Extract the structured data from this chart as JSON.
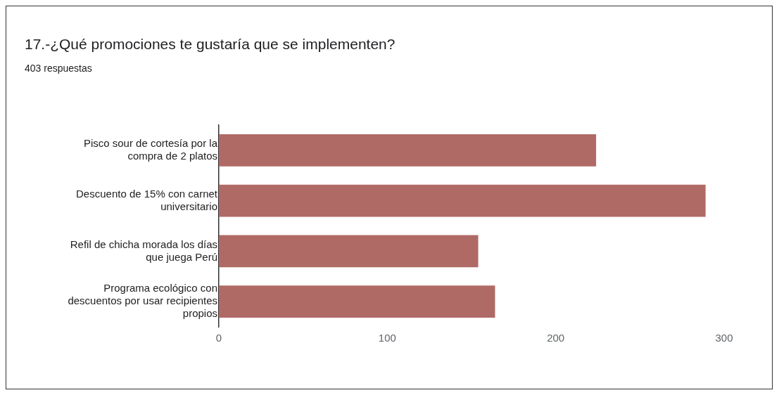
{
  "chart_data": {
    "type": "bar",
    "orientation": "horizontal",
    "title": "17.-¿Qué promociones te gustaría que se implementen?",
    "subtitle": "403 respuestas",
    "categories": [
      "Pisco sour de cortesía por la compra de 2 platos",
      "Descuento de 15% con carnet universitario",
      "Refil de chicha morada los días que juega Perú",
      "Programa ecológico con descuentos por usar recipientes propios"
    ],
    "values": [
      224,
      289,
      154,
      164
    ],
    "color": "#b06a66",
    "xlim": [
      0,
      300
    ],
    "xticks": [
      0,
      100,
      200,
      300
    ],
    "grid": false,
    "legend": false
  }
}
